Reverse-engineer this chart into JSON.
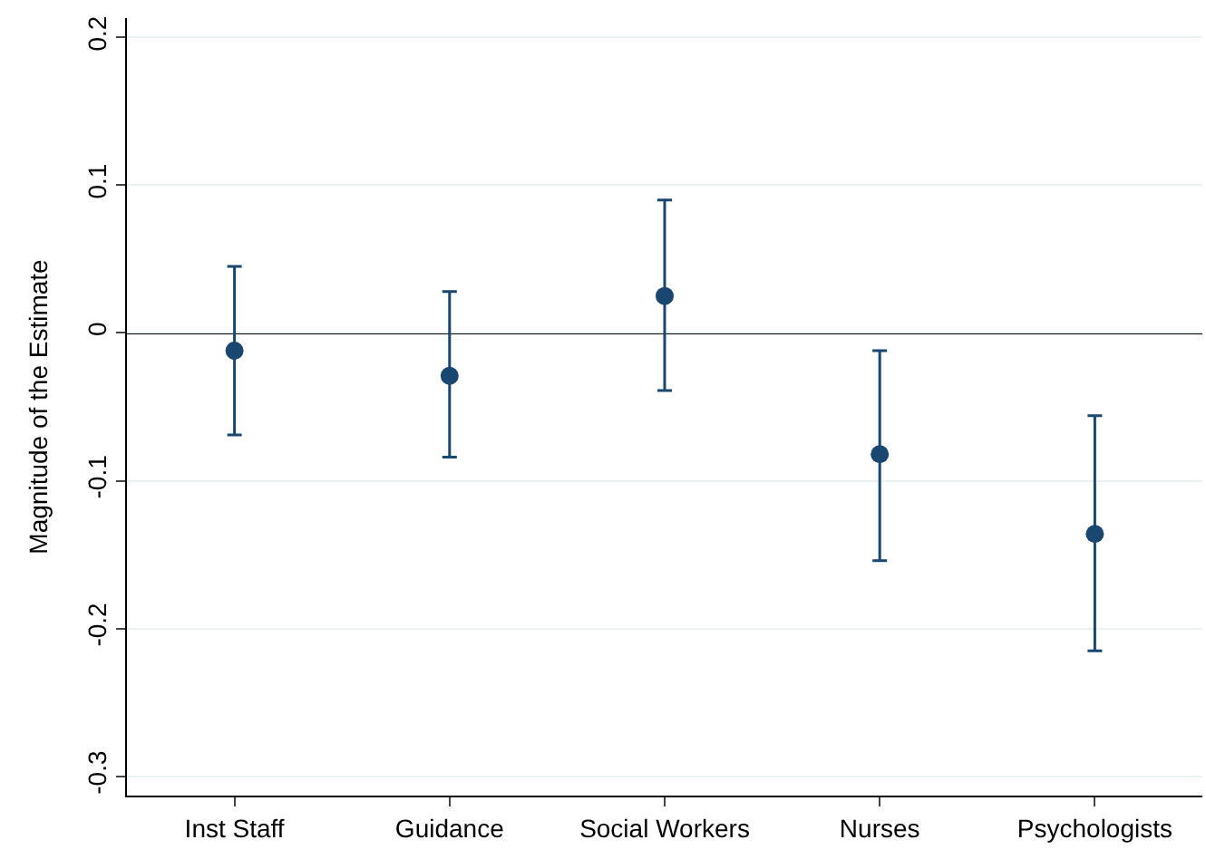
{
  "chart_data": {
    "type": "scatter",
    "ylabel": "Magnitude of the Estimate",
    "categories": [
      "Inst Staff",
      "Guidance",
      "Social Workers",
      "Nurses",
      "Psychologists"
    ],
    "values": [
      -0.012,
      -0.029,
      0.025,
      -0.082,
      -0.136
    ],
    "errors": [
      [
        -0.069,
        0.045
      ],
      [
        -0.084,
        0.028
      ],
      [
        -0.039,
        0.09
      ],
      [
        -0.154,
        -0.012
      ],
      [
        -0.215,
        -0.056
      ]
    ],
    "color": "#1a476f",
    "marker": "circle",
    "ylim": [
      -0.313,
      0.213
    ],
    "yticks": [
      {
        "value": -0.3,
        "label": "-0.3"
      },
      {
        "value": -0.2,
        "label": "-0.2"
      },
      {
        "value": -0.1,
        "label": "-0.1"
      },
      0,
      0.1,
      0.2
    ],
    "ref_lines": [
      {
        "axis": "y",
        "value": 0,
        "color": "#000000"
      }
    ],
    "grid": "y"
  }
}
